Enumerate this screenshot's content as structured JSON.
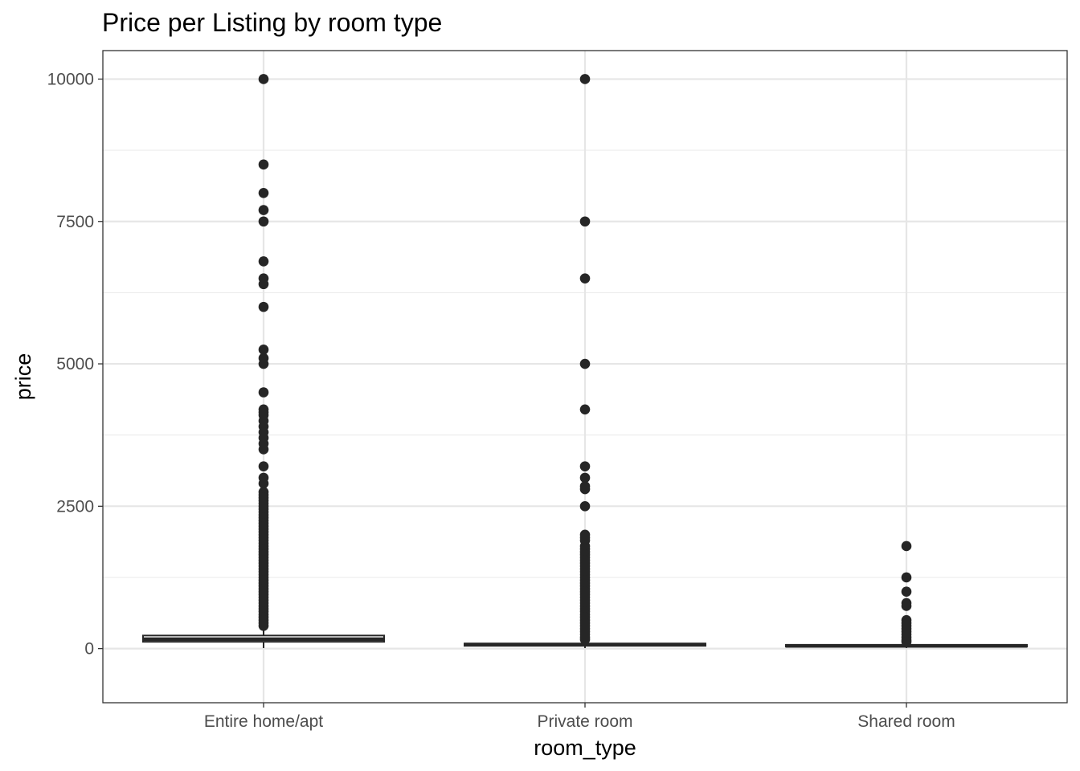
{
  "chart_data": {
    "type": "box",
    "title": "Price per Listing by room type",
    "xlabel": "room_type",
    "ylabel": "price",
    "ylim": [
      -950,
      10500
    ],
    "yticks": [
      0,
      2500,
      5000,
      7500,
      10000
    ],
    "yminor": [
      1250,
      3750,
      6250,
      8750
    ],
    "grid": true,
    "legend": "none",
    "categories": [
      "Entire home/apt",
      "Private room",
      "Shared room"
    ],
    "boxes": [
      {
        "category": "Entire home/apt",
        "q1": 120,
        "median": 165,
        "q3": 230,
        "whisker_low": 10,
        "whisker_high": 390,
        "outliers": [
          10000,
          8500,
          8000,
          7700,
          7500,
          6800,
          6500,
          6400,
          6000,
          5250,
          5100,
          5000,
          4500,
          4200,
          4150,
          4100,
          4000,
          3900,
          3800,
          3700,
          3600,
          3500,
          3200,
          3000,
          2900,
          2750,
          2700,
          2650,
          2600,
          2550,
          2500,
          2450,
          2400,
          2350,
          2300,
          2250,
          2200,
          2150,
          2100,
          2050,
          2000,
          1950,
          1900,
          1850,
          1800,
          1750,
          1700,
          1650,
          1600,
          1550,
          1500,
          1450,
          1400,
          1350,
          1300,
          1250,
          1200,
          1150,
          1100,
          1050,
          1000,
          950,
          900,
          850,
          800,
          750,
          700,
          650,
          600,
          550,
          500,
          450,
          400
        ]
      },
      {
        "category": "Private room",
        "q1": 50,
        "median": 70,
        "q3": 90,
        "whisker_low": 10,
        "whisker_high": 150,
        "outliers": [
          10000,
          7500,
          6500,
          5000,
          4200,
          3200,
          3000,
          2850,
          2800,
          2500,
          2000,
          1950,
          1900,
          1800,
          1750,
          1700,
          1650,
          1600,
          1550,
          1500,
          1450,
          1400,
          1350,
          1300,
          1250,
          1200,
          1150,
          1100,
          1050,
          1000,
          950,
          900,
          850,
          800,
          750,
          700,
          650,
          600,
          550,
          500,
          450,
          400,
          350,
          300,
          250,
          200,
          160
        ]
      },
      {
        "category": "Shared room",
        "q1": 35,
        "median": 50,
        "q3": 65,
        "whisker_low": 10,
        "whisker_high": 110,
        "outliers": [
          1800,
          1250,
          1000,
          800,
          750,
          500,
          450,
          400,
          350,
          300,
          250,
          200,
          150,
          120
        ]
      }
    ]
  }
}
